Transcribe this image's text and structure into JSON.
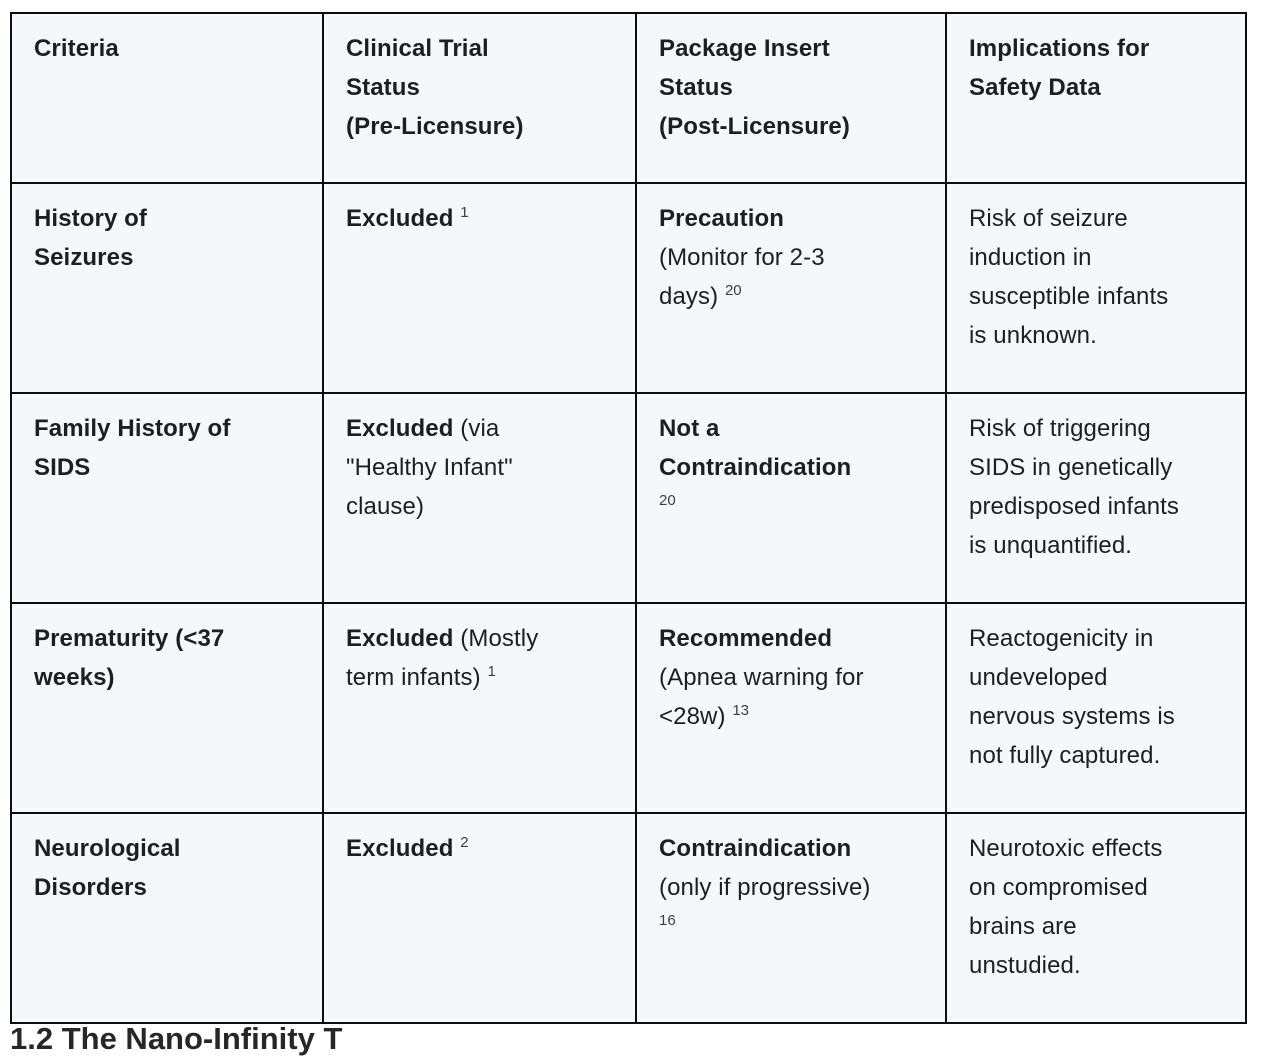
{
  "table": {
    "headers": [
      "Criteria",
      "Clinical Trial\nStatus\n(Pre-Licensure)",
      "Package Insert\nStatus\n(Post-Licensure)",
      "Implications for\nSafety Data"
    ],
    "rows": [
      {
        "criteria": "History of\nSeizures",
        "cells": [
          [
            {
              "text": "Excluded",
              "style": "bold"
            },
            {
              "text": " ",
              "style": "normal"
            },
            {
              "text": "1",
              "style": "sup"
            }
          ],
          [
            {
              "text": "Precaution",
              "style": "bold"
            },
            {
              "text": "\n(Monitor for 2-3\ndays) ",
              "style": "normal"
            },
            {
              "text": "20",
              "style": "sup"
            }
          ],
          [
            {
              "text": "Risk of seizure\ninduction in\nsusceptible infants\nis unknown.",
              "style": "normal"
            }
          ]
        ]
      },
      {
        "criteria": "Family History of\nSIDS",
        "cells": [
          [
            {
              "text": "Excluded",
              "style": "bold"
            },
            {
              "text": " (via\n\"Healthy Infant\"\nclause)",
              "style": "normal"
            }
          ],
          [
            {
              "text": "Not a\nContraindication",
              "style": "bold"
            },
            {
              "text": "\n",
              "style": "normal"
            },
            {
              "text": "20",
              "style": "sup"
            }
          ],
          [
            {
              "text": "Risk of triggering\nSIDS in genetically\npredisposed infants\nis unquantified.",
              "style": "normal"
            }
          ]
        ]
      },
      {
        "criteria": "Prematurity (<37\nweeks)",
        "cells": [
          [
            {
              "text": "Excluded",
              "style": "bold"
            },
            {
              "text": " (Mostly\nterm infants) ",
              "style": "normal"
            },
            {
              "text": "1",
              "style": "sup"
            }
          ],
          [
            {
              "text": "Recommended",
              "style": "bold"
            },
            {
              "text": "\n(Apnea warning for\n<28w) ",
              "style": "normal"
            },
            {
              "text": "13",
              "style": "sup"
            }
          ],
          [
            {
              "text": "Reactogenicity in\nundeveloped\nnervous systems is\nnot fully captured.",
              "style": "normal"
            }
          ]
        ]
      },
      {
        "criteria": "Neurological\nDisorders",
        "cells": [
          [
            {
              "text": "Excluded",
              "style": "bold"
            },
            {
              "text": " ",
              "style": "normal"
            },
            {
              "text": "2",
              "style": "sup"
            }
          ],
          [
            {
              "text": "Contraindication",
              "style": "bold"
            },
            {
              "text": "\n(only if progressive)\n",
              "style": "normal"
            },
            {
              "text": "16",
              "style": "sup"
            }
          ],
          [
            {
              "text": "Neurotoxic effects\non compromised\nbrains are\nunstudied.",
              "style": "normal"
            }
          ]
        ]
      }
    ]
  },
  "clipped_heading": "1.2 The Nano-Infinity T",
  "colors": {
    "cell_background": "#f5f8fb",
    "border": "#0c0d0e",
    "text": "#1c1e21"
  }
}
